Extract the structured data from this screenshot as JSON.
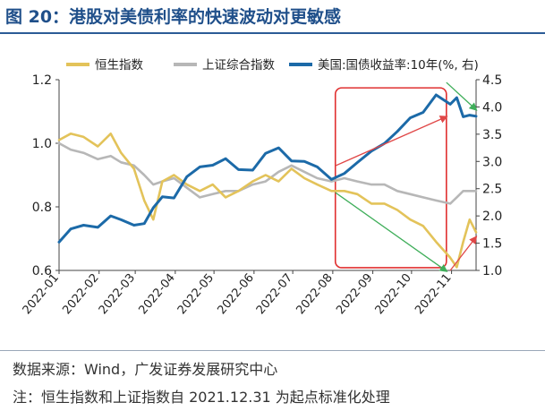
{
  "figure": {
    "title": "图 20：港股对美债利率的快速波动对更敏感",
    "source": "数据来源：Wind，广发证券发展研究中心",
    "note": "注：恒生指数和上证指数自 2021.12.31 为起点标准化处理"
  },
  "colors": {
    "hsi": "#e3c35a",
    "sse": "#b7b7b7",
    "ust": "#1c6aa8",
    "highlight_box": "#e03030",
    "arrow_red": "#e04848",
    "arrow_green": "#3fae5a",
    "title": "#1f4f8a"
  },
  "chart_data": {
    "type": "line",
    "x_labels": [
      "2022-01",
      "2022-02",
      "2022-03",
      "2022-04",
      "2022-05",
      "2022-06",
      "2022-07",
      "2022-08",
      "2022-09",
      "2022-10",
      "2022-11"
    ],
    "x_range": [
      "2022-01-01",
      "2022-11-20"
    ],
    "y_left": {
      "ylim": [
        0.6,
        1.2
      ],
      "ticks": [
        "0.6",
        "0.8",
        "1.0",
        "1.2"
      ]
    },
    "y_right": {
      "ylim": [
        1.0,
        4.5
      ],
      "ticks": [
        "1.0",
        "1.5",
        "2.0",
        "2.5",
        "3.0",
        "3.5",
        "4.0",
        "4.5"
      ]
    },
    "legend_position": "top",
    "series": [
      {
        "name": "恒生指数",
        "axis": "left",
        "dates": [
          "2022-01-01",
          "2022-01-10",
          "2022-01-20",
          "2022-01-31",
          "2022-02-10",
          "2022-02-18",
          "2022-02-28",
          "2022-03-08",
          "2022-03-15",
          "2022-03-22",
          "2022-03-31",
          "2022-04-10",
          "2022-04-20",
          "2022-04-30",
          "2022-05-10",
          "2022-05-20",
          "2022-05-31",
          "2022-06-10",
          "2022-06-20",
          "2022-06-30",
          "2022-07-10",
          "2022-07-20",
          "2022-07-31",
          "2022-08-10",
          "2022-08-20",
          "2022-08-31",
          "2022-09-10",
          "2022-09-20",
          "2022-09-30",
          "2022-10-10",
          "2022-10-20",
          "2022-10-31",
          "2022-11-05",
          "2022-11-10",
          "2022-11-15",
          "2022-11-20"
        ],
        "values": [
          1.01,
          1.03,
          1.02,
          0.99,
          1.03,
          0.97,
          0.92,
          0.82,
          0.76,
          0.88,
          0.9,
          0.87,
          0.85,
          0.87,
          0.83,
          0.85,
          0.88,
          0.9,
          0.88,
          0.92,
          0.89,
          0.87,
          0.85,
          0.85,
          0.84,
          0.81,
          0.81,
          0.79,
          0.76,
          0.74,
          0.69,
          0.64,
          0.61,
          0.69,
          0.76,
          0.72
        ]
      },
      {
        "name": "上证综合指数",
        "axis": "left",
        "dates": [
          "2022-01-01",
          "2022-01-10",
          "2022-01-20",
          "2022-01-31",
          "2022-02-10",
          "2022-02-18",
          "2022-02-28",
          "2022-03-08",
          "2022-03-15",
          "2022-03-22",
          "2022-03-31",
          "2022-04-10",
          "2022-04-20",
          "2022-04-30",
          "2022-05-10",
          "2022-05-20",
          "2022-05-31",
          "2022-06-10",
          "2022-06-20",
          "2022-06-30",
          "2022-07-10",
          "2022-07-20",
          "2022-07-31",
          "2022-08-10",
          "2022-08-20",
          "2022-08-31",
          "2022-09-10",
          "2022-09-20",
          "2022-09-30",
          "2022-10-10",
          "2022-10-20",
          "2022-10-31",
          "2022-11-05",
          "2022-11-10",
          "2022-11-15",
          "2022-11-20"
        ],
        "values": [
          1.0,
          0.98,
          0.97,
          0.95,
          0.96,
          0.94,
          0.93,
          0.9,
          0.87,
          0.88,
          0.89,
          0.86,
          0.83,
          0.84,
          0.85,
          0.85,
          0.87,
          0.88,
          0.91,
          0.93,
          0.91,
          0.89,
          0.88,
          0.89,
          0.88,
          0.87,
          0.87,
          0.85,
          0.84,
          0.83,
          0.82,
          0.81,
          0.83,
          0.85,
          0.85,
          0.85
        ]
      },
      {
        "name": "美国:国债收益率:10年(%, 右)",
        "axis": "right",
        "dates": [
          "2022-01-01",
          "2022-01-10",
          "2022-01-20",
          "2022-01-31",
          "2022-02-10",
          "2022-02-18",
          "2022-02-28",
          "2022-03-08",
          "2022-03-15",
          "2022-03-22",
          "2022-03-31",
          "2022-04-10",
          "2022-04-20",
          "2022-04-30",
          "2022-05-10",
          "2022-05-20",
          "2022-05-31",
          "2022-06-10",
          "2022-06-20",
          "2022-06-30",
          "2022-07-10",
          "2022-07-20",
          "2022-07-31",
          "2022-08-10",
          "2022-08-20",
          "2022-08-31",
          "2022-09-10",
          "2022-09-20",
          "2022-09-30",
          "2022-10-10",
          "2022-10-20",
          "2022-10-31",
          "2022-11-05",
          "2022-11-10",
          "2022-11-15",
          "2022-11-20"
        ],
        "values": [
          1.52,
          1.76,
          1.83,
          1.79,
          2.0,
          1.93,
          1.83,
          1.86,
          2.15,
          2.35,
          2.33,
          2.72,
          2.9,
          2.93,
          3.05,
          2.85,
          2.84,
          3.15,
          3.25,
          3.01,
          3.0,
          2.9,
          2.67,
          2.78,
          2.98,
          3.19,
          3.33,
          3.55,
          3.8,
          3.9,
          4.22,
          4.05,
          4.17,
          3.82,
          3.85,
          3.83
        ]
      }
    ],
    "annotations": [
      {
        "type": "box",
        "x_range": [
          "2022-08-03",
          "2022-10-28"
        ],
        "y_range_right": [
          1.05,
          4.35
        ]
      },
      {
        "type": "arrow",
        "color": "red",
        "axis": "right",
        "from": [
          "2022-08-03",
          2.92
        ],
        "to": [
          "2022-10-28",
          3.82
        ]
      },
      {
        "type": "arrow",
        "color": "green",
        "axis": "left",
        "from": [
          "2022-08-03",
          0.845
        ],
        "to": [
          "2022-10-28",
          0.598
        ]
      },
      {
        "type": "arrow",
        "color": "red",
        "axis": "left",
        "from": [
          "2022-10-31",
          0.6
        ],
        "to": [
          "2022-11-20",
          0.705
        ]
      },
      {
        "type": "arrow",
        "color": "green",
        "axis": "right",
        "from": [
          "2022-10-28",
          4.45
        ],
        "to": [
          "2022-11-20",
          3.95
        ]
      }
    ]
  }
}
